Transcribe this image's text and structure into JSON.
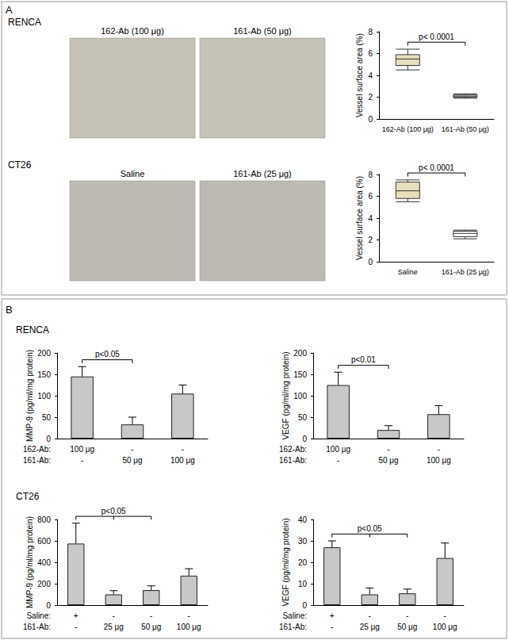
{
  "panels": [
    {
      "label": "A",
      "rows": [
        {
          "label": "RENCA",
          "images": [
            "162-Ab (100 μg)",
            "161-Ab (50 μg)"
          ]
        },
        {
          "label": "CT26",
          "images": [
            "Saline",
            "161-Ab (25 μg)"
          ]
        }
      ]
    },
    {
      "label": "B",
      "rows": [
        {
          "label": "RENCA"
        },
        {
          "label": "CT26"
        }
      ]
    }
  ],
  "chart_data": [
    {
      "type": "boxplot",
      "categories": [
        "162-Ab (100 μg)",
        "161-Ab (50 μg)"
      ],
      "boxes": [
        [
          4.5,
          4.9,
          5.5,
          5.9,
          6.4
        ],
        [
          1.9,
          2.0,
          2.1,
          2.2,
          2.3
        ]
      ],
      "colors": [
        "#e8dfbc",
        "#ffffff"
      ],
      "y_label": "Vessel surface area (%)",
      "ylim": [
        0,
        8
      ],
      "yticks": [
        0,
        2,
        4,
        6,
        8
      ],
      "grid": false,
      "annotations": [
        {
          "text": "p< 0.0001",
          "between": [
            0,
            1
          ]
        }
      ]
    },
    {
      "type": "boxplot",
      "categories": [
        "Saline",
        "161-Ab (25 μg)"
      ],
      "boxes": [
        [
          5.5,
          5.8,
          6.5,
          7.3,
          7.5
        ],
        [
          2.1,
          2.3,
          2.6,
          2.8,
          2.9
        ]
      ],
      "colors": [
        "#e8dfbc",
        "#ffffff"
      ],
      "y_label": "Vessel surface area (%)",
      "ylim": [
        0,
        8
      ],
      "yticks": [
        0,
        2,
        4,
        6,
        8
      ],
      "grid": false,
      "annotations": [
        {
          "text": "p< 0.0001",
          "between": [
            0,
            1
          ]
        }
      ]
    },
    {
      "type": "bar",
      "categories": [
        null,
        null,
        null
      ],
      "values": [
        145,
        33,
        105
      ],
      "errors": [
        23,
        17,
        20
      ],
      "color": "#c8c8c8",
      "y_label": "MMP-9 (pg/ml/mg protein)",
      "ylim": [
        0,
        200
      ],
      "yticks": [
        0,
        50,
        100,
        150,
        200
      ],
      "grid": false,
      "treatments": [
        {
          "label": "162-Ab:",
          "values": [
            "100 μg",
            "-",
            "-"
          ]
        },
        {
          "label": "161-Ab:",
          "values": [
            "-",
            "50 μg",
            "100 μg"
          ]
        }
      ],
      "annotations": [
        {
          "text": "p<0.05",
          "between": [
            0,
            1
          ]
        }
      ]
    },
    {
      "type": "bar",
      "categories": [
        null,
        null,
        null
      ],
      "values": [
        125,
        20,
        57
      ],
      "errors": [
        30,
        10,
        20
      ],
      "color": "#c8c8c8",
      "y_label": "VEGF (pg/ml/mg protein)",
      "ylim": [
        0,
        200
      ],
      "yticks": [
        0,
        50,
        100,
        150,
        200
      ],
      "grid": false,
      "treatments": [
        {
          "label": "162-Ab:",
          "values": [
            "100 μg",
            "-",
            "-"
          ]
        },
        {
          "label": "161-Ab:",
          "values": [
            "-",
            "50 μg",
            "100 μg"
          ]
        }
      ],
      "annotations": [
        {
          "text": "p<0.01",
          "between": [
            0,
            1
          ]
        }
      ]
    },
    {
      "type": "bar",
      "categories": [
        null,
        null,
        null,
        null
      ],
      "values": [
        575,
        100,
        140,
        275
      ],
      "errors": [
        190,
        35,
        40,
        65
      ],
      "color": "#c8c8c8",
      "y_label": "MMP-9 (pg/ml/mg protein)",
      "ylim": [
        0,
        800
      ],
      "yticks": [
        0,
        200,
        400,
        600,
        800
      ],
      "grid": false,
      "treatments": [
        {
          "label": "Saline:",
          "values": [
            "+",
            "-",
            "-",
            "-"
          ]
        },
        {
          "label": "161-Ab:",
          "values": [
            "-",
            "25 μg",
            "50 μg",
            "100 μg"
          ]
        }
      ],
      "annotations": [
        {
          "text": "p<0.05",
          "between": [
            0,
            1,
            2
          ]
        }
      ]
    },
    {
      "type": "bar",
      "categories": [
        null,
        null,
        null,
        null
      ],
      "values": [
        27,
        5,
        5.5,
        22
      ],
      "errors": [
        3,
        3,
        2,
        7
      ],
      "color": "#c8c8c8",
      "y_label": "VEGF (pg/ml/mg protein)",
      "ylim": [
        0,
        40
      ],
      "yticks": [
        0,
        10,
        20,
        30,
        40
      ],
      "grid": false,
      "treatments": [
        {
          "label": "Saline:",
          "values": [
            "+",
            "-",
            "-",
            "-"
          ]
        },
        {
          "label": "161-Ab:",
          "values": [
            "-",
            "25 μg",
            "50 μg",
            "100 μg"
          ]
        }
      ],
      "annotations": [
        {
          "text": "p<0.05",
          "between": [
            0,
            1,
            2
          ]
        }
      ]
    }
  ]
}
